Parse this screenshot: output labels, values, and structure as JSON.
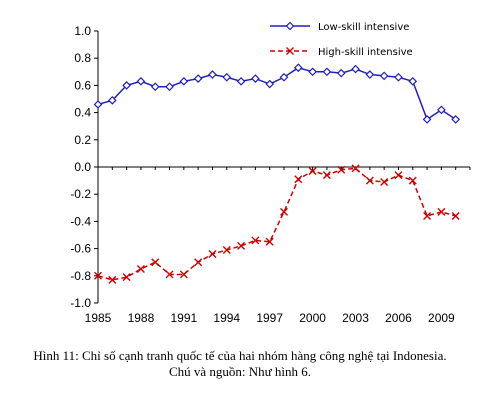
{
  "chart_data": {
    "type": "line",
    "x": [
      1985,
      1986,
      1987,
      1988,
      1989,
      1990,
      1991,
      1992,
      1993,
      1994,
      1995,
      1996,
      1997,
      1998,
      1999,
      2000,
      2001,
      2002,
      2003,
      2004,
      2005,
      2006,
      2007,
      2008,
      2009,
      2010
    ],
    "series": [
      {
        "name": "Low-skill intensive",
        "color": "#1f1fbf",
        "marker": "diamond",
        "values": [
          0.46,
          0.49,
          0.6,
          0.63,
          0.59,
          0.59,
          0.63,
          0.65,
          0.68,
          0.66,
          0.63,
          0.65,
          0.61,
          0.66,
          0.73,
          0.7,
          0.7,
          0.69,
          0.72,
          0.68,
          0.67,
          0.66,
          0.63,
          0.35,
          0.42,
          0.35
        ]
      },
      {
        "name": "High-skill intensive",
        "color": "#cc0000",
        "marker": "x",
        "values": [
          -0.8,
          -0.83,
          -0.81,
          -0.75,
          -0.7,
          -0.79,
          -0.79,
          -0.7,
          -0.64,
          -0.61,
          -0.58,
          -0.54,
          -0.55,
          -0.33,
          -0.09,
          -0.03,
          -0.06,
          -0.02,
          -0.01,
          -0.1,
          -0.11,
          -0.06,
          -0.1,
          -0.36,
          -0.33,
          -0.36
        ]
      }
    ],
    "xticks": [
      "1985",
      "1988",
      "1991",
      "1994",
      "1997",
      "2000",
      "2003",
      "2006",
      "2009"
    ],
    "yticks": [
      "1.0",
      "0.8",
      "0.6",
      "0.4",
      "0.2",
      "0.0",
      "-0.2",
      "-0.4",
      "-0.6",
      "-0.8",
      "-1.0"
    ],
    "ylim": [
      -1.0,
      1.0
    ],
    "xlim": [
      1985,
      2011
    ],
    "legend_position": "top-right",
    "grid": false
  },
  "caption": {
    "line1": "Hình 11: Chỉ số cạnh tranh quốc tế của hai nhóm hàng công nghệ tại Indonesia.",
    "line2": "Chú và nguồn: Như hình 6."
  }
}
